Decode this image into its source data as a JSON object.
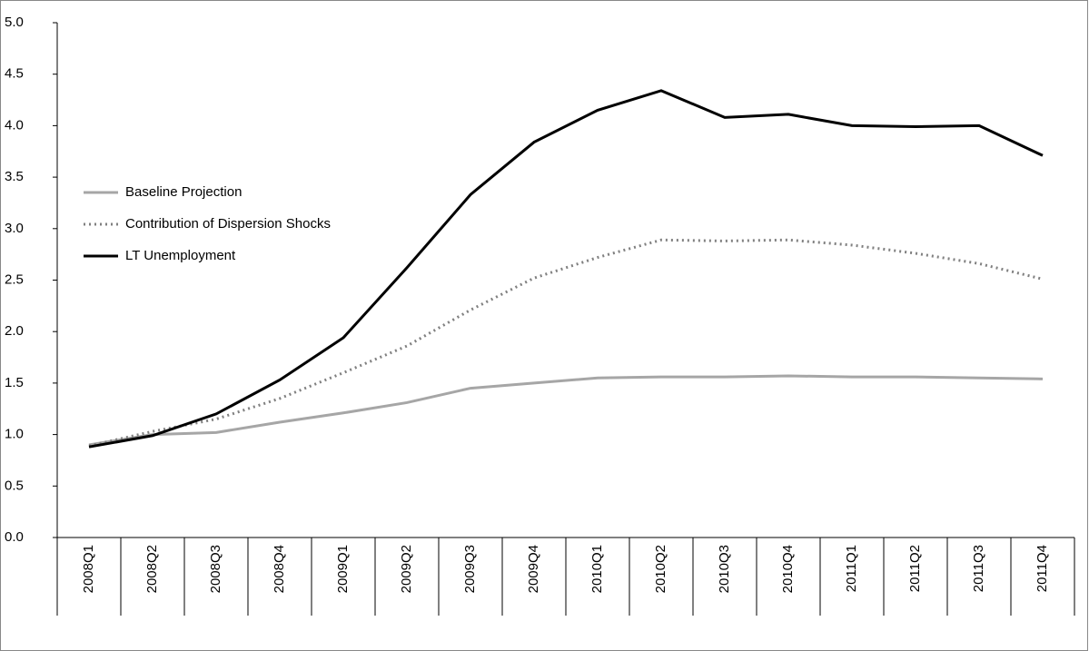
{
  "chart_data": {
    "type": "line",
    "categories": [
      "2008Q1",
      "2008Q2",
      "2008Q3",
      "2008Q4",
      "2009Q1",
      "2009Q2",
      "2009Q3",
      "2009Q4",
      "2010Q1",
      "2010Q2",
      "2010Q3",
      "2010Q4",
      "2011Q1",
      "2011Q2",
      "2011Q3",
      "2011Q4"
    ],
    "series": [
      {
        "name": "Baseline Projection",
        "color": "#a6a6a6",
        "dash": "solid",
        "values": [
          0.9,
          1.0,
          1.02,
          1.12,
          1.21,
          1.31,
          1.45,
          1.5,
          1.55,
          1.56,
          1.56,
          1.57,
          1.56,
          1.56,
          1.55,
          1.54
        ]
      },
      {
        "name": "Contribution of Dispersion Shocks",
        "color": "#808080",
        "dash": "dotted",
        "values": [
          0.89,
          1.03,
          1.15,
          1.35,
          1.6,
          1.86,
          2.21,
          2.52,
          2.72,
          2.89,
          2.88,
          2.89,
          2.84,
          2.76,
          2.66,
          2.51
        ]
      },
      {
        "name": "LT Unemployment",
        "color": "#000000",
        "dash": "solid",
        "values": [
          0.88,
          0.99,
          1.2,
          1.53,
          1.94,
          2.62,
          3.33,
          3.84,
          4.15,
          4.34,
          4.08,
          4.11,
          4.0,
          3.99,
          4.0,
          3.71
        ]
      }
    ],
    "ylim": [
      0,
      5
    ],
    "yticks": [
      {
        "value": 0,
        "label": "0.0"
      },
      0.5,
      {
        "value": 1,
        "label": "1.0"
      },
      1.5,
      {
        "value": 2,
        "label": "2.0"
      },
      2.5,
      {
        "value": 3,
        "label": "3.0"
      },
      3.5,
      {
        "value": 4,
        "label": "4.0"
      },
      4.5,
      {
        "value": 5,
        "label": "5.0"
      }
    ],
    "grid": false,
    "legend": "left"
  }
}
